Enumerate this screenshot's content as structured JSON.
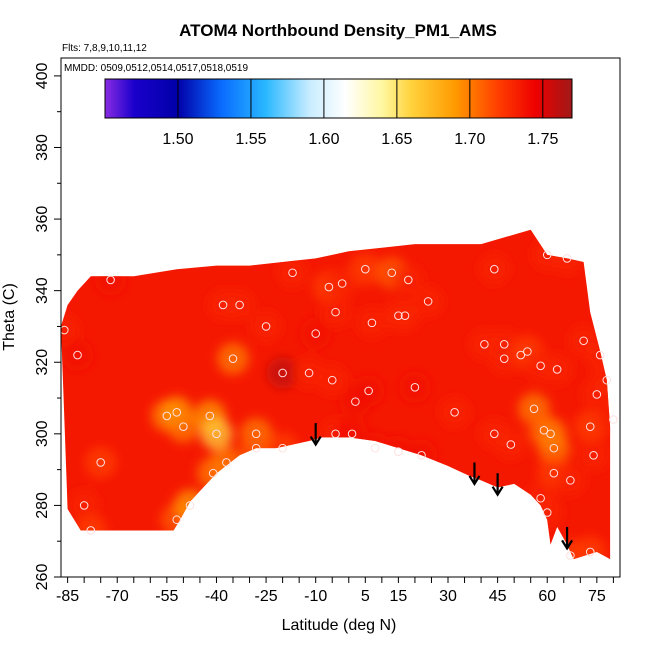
{
  "chart_data": {
    "type": "heatmap",
    "title": "ATOM4 Northbound Density_PM1_AMS",
    "annotations": {
      "flights": "Flts: 7,8,9,10,11,12",
      "dates": "MMDD: 0509,0512,0514,0517,0518,0519"
    },
    "xlabel": "Latitude (deg N)",
    "ylabel": "Theta (C)",
    "xlim": [
      -87,
      82
    ],
    "ylim": [
      260,
      405
    ],
    "x_ticks": [
      -85,
      -70,
      -55,
      -40,
      -25,
      -10,
      5,
      15,
      30,
      45,
      60,
      75
    ],
    "x_tick_labels": [
      "-85",
      "-70",
      "-55",
      "-40",
      "-25",
      "-10",
      "5",
      "15",
      "30",
      "45",
      "60",
      "75"
    ],
    "y_ticks": [
      260,
      280,
      300,
      320,
      340,
      360,
      380,
      400
    ],
    "y_tick_labels": [
      "260",
      "280",
      "300",
      "320",
      "340",
      "360",
      "380",
      "400"
    ],
    "colorbar": {
      "range": [
        1.45,
        1.77
      ],
      "ticks": [
        1.5,
        1.55,
        1.6,
        1.65,
        1.7,
        1.75
      ],
      "tick_labels": [
        "1.50",
        "1.55",
        "1.60",
        "1.65",
        "1.70",
        "1.75"
      ],
      "stops": [
        {
          "value": 1.45,
          "color": "#8a2be2"
        },
        {
          "value": 1.47,
          "color": "#1a00cc"
        },
        {
          "value": 1.5,
          "color": "#0000a8"
        },
        {
          "value": 1.53,
          "color": "#0a6cff"
        },
        {
          "value": 1.56,
          "color": "#29b8ff"
        },
        {
          "value": 1.59,
          "color": "#c8ecff"
        },
        {
          "value": 1.615,
          "color": "#ffffff"
        },
        {
          "value": 1.64,
          "color": "#fff7a0"
        },
        {
          "value": 1.66,
          "color": "#ffd23c"
        },
        {
          "value": 1.69,
          "color": "#ff9a00"
        },
        {
          "value": 1.72,
          "color": "#ff3c00"
        },
        {
          "value": 1.745,
          "color": "#ee0000"
        },
        {
          "value": 1.77,
          "color": "#a01818"
        }
      ]
    },
    "field_lower_boundary": [
      [
        -85,
        279
      ],
      [
        -81,
        273
      ],
      [
        -53,
        273
      ],
      [
        -51,
        276
      ],
      [
        -48,
        281
      ],
      [
        -40,
        289
      ],
      [
        -33,
        294
      ],
      [
        -28,
        296
      ],
      [
        -22,
        296
      ],
      [
        -17,
        297
      ],
      [
        -12,
        298
      ],
      [
        -8,
        299
      ],
      [
        0,
        299
      ],
      [
        8,
        298
      ],
      [
        15,
        296
      ],
      [
        22,
        294
      ],
      [
        30,
        291
      ],
      [
        37,
        288
      ],
      [
        40,
        287
      ],
      [
        45,
        285
      ],
      [
        50,
        286
      ],
      [
        55,
        283
      ],
      [
        58,
        280
      ],
      [
        60,
        276
      ],
      [
        61,
        269
      ],
      [
        63,
        274
      ],
      [
        66,
        269
      ],
      [
        68,
        265
      ],
      [
        75,
        267
      ],
      [
        79,
        265
      ]
    ],
    "field_upper_boundary": [
      [
        79,
        302
      ],
      [
        78,
        315
      ],
      [
        76,
        323
      ],
      [
        73,
        334
      ],
      [
        71,
        348
      ],
      [
        66,
        349
      ],
      [
        60,
        350
      ],
      [
        55,
        357
      ],
      [
        40,
        353
      ],
      [
        30,
        353
      ],
      [
        20,
        353
      ],
      [
        10,
        352
      ],
      [
        0,
        351
      ],
      [
        -10,
        349
      ],
      [
        -20,
        348
      ],
      [
        -30,
        347
      ],
      [
        -40,
        347
      ],
      [
        -52,
        346
      ],
      [
        -65,
        344
      ],
      [
        -78,
        344
      ],
      [
        -82,
        340
      ],
      [
        -85,
        336
      ],
      [
        -87,
        330
      ]
    ],
    "points": [
      {
        "x": -86,
        "y": 329,
        "v": 1.73
      },
      {
        "x": -82,
        "y": 322,
        "v": 1.74
      },
      {
        "x": -80,
        "y": 280,
        "v": 1.73
      },
      {
        "x": -78,
        "y": 273,
        "v": 1.72
      },
      {
        "x": -75,
        "y": 292,
        "v": 1.72
      },
      {
        "x": -72,
        "y": 343,
        "v": 1.74
      },
      {
        "x": -55,
        "y": 305,
        "v": 1.7
      },
      {
        "x": -52,
        "y": 306,
        "v": 1.69
      },
      {
        "x": -50,
        "y": 302,
        "v": 1.7
      },
      {
        "x": -52,
        "y": 276,
        "v": 1.71
      },
      {
        "x": -48,
        "y": 280,
        "v": 1.69
      },
      {
        "x": -42,
        "y": 305,
        "v": 1.69
      },
      {
        "x": -40,
        "y": 300,
        "v": 1.66
      },
      {
        "x": -41,
        "y": 289,
        "v": 1.7
      },
      {
        "x": -37,
        "y": 292,
        "v": 1.7
      },
      {
        "x": -38,
        "y": 336,
        "v": 1.73
      },
      {
        "x": -33,
        "y": 336,
        "v": 1.73
      },
      {
        "x": -35,
        "y": 321,
        "v": 1.7
      },
      {
        "x": -28,
        "y": 300,
        "v": 1.7
      },
      {
        "x": -28,
        "y": 296,
        "v": 1.71
      },
      {
        "x": -25,
        "y": 330,
        "v": 1.73
      },
      {
        "x": -20,
        "y": 317,
        "v": 1.76
      },
      {
        "x": -20,
        "y": 296,
        "v": 1.72
      },
      {
        "x": -17,
        "y": 345,
        "v": 1.73
      },
      {
        "x": -12,
        "y": 317,
        "v": 1.73
      },
      {
        "x": -10,
        "y": 328,
        "v": 1.74
      },
      {
        "x": -6,
        "y": 341,
        "v": 1.72
      },
      {
        "x": -4,
        "y": 334,
        "v": 1.73
      },
      {
        "x": -5,
        "y": 315,
        "v": 1.73
      },
      {
        "x": -4,
        "y": 300,
        "v": 1.73
      },
      {
        "x": -2,
        "y": 342,
        "v": 1.73
      },
      {
        "x": 2,
        "y": 309,
        "v": 1.74
      },
      {
        "x": 1,
        "y": 300,
        "v": 1.74
      },
      {
        "x": 5,
        "y": 346,
        "v": 1.72
      },
      {
        "x": 7,
        "y": 331,
        "v": 1.73
      },
      {
        "x": 6,
        "y": 312,
        "v": 1.74
      },
      {
        "x": 8,
        "y": 296,
        "v": 1.74
      },
      {
        "x": 13,
        "y": 345,
        "v": 1.71
      },
      {
        "x": 15,
        "y": 333,
        "v": 1.73
      },
      {
        "x": 17,
        "y": 333,
        "v": 1.73
      },
      {
        "x": 18,
        "y": 343,
        "v": 1.73
      },
      {
        "x": 15,
        "y": 295,
        "v": 1.74
      },
      {
        "x": 20,
        "y": 313,
        "v": 1.74
      },
      {
        "x": 22,
        "y": 294,
        "v": 1.74
      },
      {
        "x": 24,
        "y": 337,
        "v": 1.73
      },
      {
        "x": 32,
        "y": 306,
        "v": 1.73
      },
      {
        "x": 41,
        "y": 325,
        "v": 1.73
      },
      {
        "x": 44,
        "y": 346,
        "v": 1.73
      },
      {
        "x": 47,
        "y": 321,
        "v": 1.73
      },
      {
        "x": 47,
        "y": 325,
        "v": 1.73
      },
      {
        "x": 44,
        "y": 300,
        "v": 1.73
      },
      {
        "x": 49,
        "y": 297,
        "v": 1.73
      },
      {
        "x": 52,
        "y": 322,
        "v": 1.73
      },
      {
        "x": 54,
        "y": 323,
        "v": 1.72
      },
      {
        "x": 56,
        "y": 307,
        "v": 1.7
      },
      {
        "x": 58,
        "y": 319,
        "v": 1.73
      },
      {
        "x": 59,
        "y": 301,
        "v": 1.71
      },
      {
        "x": 61,
        "y": 300,
        "v": 1.7
      },
      {
        "x": 62,
        "y": 296,
        "v": 1.7
      },
      {
        "x": 63,
        "y": 318,
        "v": 1.73
      },
      {
        "x": 62,
        "y": 289,
        "v": 1.72
      },
      {
        "x": 60,
        "y": 350,
        "v": 1.73
      },
      {
        "x": 66,
        "y": 349,
        "v": 1.73
      },
      {
        "x": 58,
        "y": 282,
        "v": 1.73
      },
      {
        "x": 60,
        "y": 278,
        "v": 1.73
      },
      {
        "x": 67,
        "y": 287,
        "v": 1.73
      },
      {
        "x": 71,
        "y": 326,
        "v": 1.73
      },
      {
        "x": 73,
        "y": 302,
        "v": 1.72
      },
      {
        "x": 74,
        "y": 294,
        "v": 1.73
      },
      {
        "x": 75,
        "y": 311,
        "v": 1.73
      },
      {
        "x": 76,
        "y": 322,
        "v": 1.73
      },
      {
        "x": 78,
        "y": 315,
        "v": 1.73
      },
      {
        "x": 80,
        "y": 304,
        "v": 1.73
      },
      {
        "x": 73,
        "y": 267,
        "v": 1.72
      },
      {
        "x": 67,
        "y": 266,
        "v": 1.72
      }
    ],
    "arrows": [
      {
        "x": -10,
        "y_start": 303,
        "y_end": 297
      },
      {
        "x": 38,
        "y_start": 292,
        "y_end": 286
      },
      {
        "x": 45,
        "y_start": 289,
        "y_end": 283
      },
      {
        "x": 66,
        "y_start": 274,
        "y_end": 268
      }
    ]
  }
}
